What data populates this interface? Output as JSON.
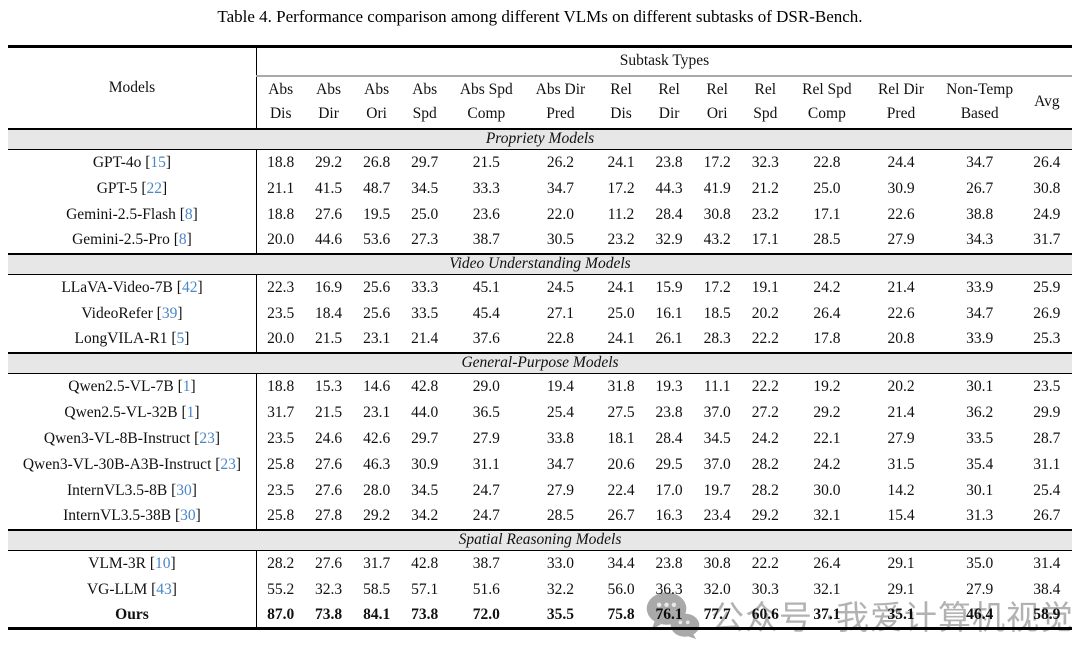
{
  "title": "Table 4. Performance comparison among different VLMs on different subtasks of DSR-Bench.",
  "colors": {
    "cite_blue": "#4A86C8",
    "section_band_gray": "#E7E7E7",
    "watermark_gray": "#B2B2B2"
  },
  "watermark": {
    "icon": "wechat-icon",
    "text": "公众号 ·我爱计算机视觉"
  },
  "table": {
    "models_header": "Models",
    "group_header": "Subtask Types",
    "columns": [
      {
        "l1": "Abs",
        "l2": "Dis"
      },
      {
        "l1": "Abs",
        "l2": "Dir"
      },
      {
        "l1": "Abs",
        "l2": "Ori"
      },
      {
        "l1": "Abs",
        "l2": "Spd"
      },
      {
        "l1": "Abs Spd",
        "l2": "Comp"
      },
      {
        "l1": "Abs Dir",
        "l2": "Pred"
      },
      {
        "l1": "Rel",
        "l2": "Dis"
      },
      {
        "l1": "Rel",
        "l2": "Dir"
      },
      {
        "l1": "Rel",
        "l2": "Ori"
      },
      {
        "l1": "Rel",
        "l2": "Spd"
      },
      {
        "l1": "Rel Spd",
        "l2": "Comp"
      },
      {
        "l1": "Rel Dir",
        "l2": "Pred"
      },
      {
        "l1": "Non-Temp",
        "l2": "Based"
      },
      {
        "l1": "Avg",
        "l2": ""
      }
    ],
    "sections": [
      {
        "label": "Propriety Models",
        "rows": [
          {
            "model": "GPT-4o",
            "cite": "15",
            "bold": false,
            "values": [
              "18.8",
              "29.2",
              "26.8",
              "29.7",
              "21.5",
              "26.2",
              "24.1",
              "23.8",
              "17.2",
              "32.3",
              "22.8",
              "24.4",
              "34.7",
              "26.4"
            ]
          },
          {
            "model": "GPT-5",
            "cite": "22",
            "bold": false,
            "values": [
              "21.1",
              "41.5",
              "48.7",
              "34.5",
              "33.3",
              "34.7",
              "17.2",
              "44.3",
              "41.9",
              "21.2",
              "25.0",
              "30.9",
              "26.7",
              "30.8"
            ]
          },
          {
            "model": "Gemini-2.5-Flash",
            "cite": "8",
            "bold": false,
            "values": [
              "18.8",
              "27.6",
              "19.5",
              "25.0",
              "23.6",
              "22.0",
              "11.2",
              "28.4",
              "30.8",
              "23.2",
              "17.1",
              "22.6",
              "38.8",
              "24.9"
            ]
          },
          {
            "model": "Gemini-2.5-Pro",
            "cite": "8",
            "bold": false,
            "values": [
              "20.0",
              "44.6",
              "53.6",
              "27.3",
              "38.7",
              "30.5",
              "23.2",
              "32.9",
              "43.2",
              "17.1",
              "28.5",
              "27.9",
              "34.3",
              "31.7"
            ]
          }
        ]
      },
      {
        "label": "Video Understanding Models",
        "rows": [
          {
            "model": "LLaVA-Video-7B",
            "cite": "42",
            "bold": false,
            "values": [
              "22.3",
              "16.9",
              "25.6",
              "33.3",
              "45.1",
              "24.5",
              "24.1",
              "15.9",
              "17.2",
              "19.1",
              "24.2",
              "21.4",
              "33.9",
              "25.9"
            ]
          },
          {
            "model": "VideoRefer",
            "cite": "39",
            "bold": false,
            "values": [
              "23.5",
              "18.4",
              "25.6",
              "33.5",
              "45.4",
              "27.1",
              "25.0",
              "16.1",
              "18.5",
              "20.2",
              "26.4",
              "22.6",
              "34.7",
              "26.9"
            ]
          },
          {
            "model": "LongVILA-R1",
            "cite": "5",
            "bold": false,
            "values": [
              "20.0",
              "21.5",
              "23.1",
              "21.4",
              "37.6",
              "22.8",
              "24.1",
              "26.1",
              "28.3",
              "22.2",
              "17.8",
              "20.8",
              "33.9",
              "25.3"
            ]
          }
        ]
      },
      {
        "label": "General-Purpose Models",
        "rows": [
          {
            "model": "Qwen2.5-VL-7B",
            "cite": "1",
            "bold": false,
            "values": [
              "18.8",
              "15.3",
              "14.6",
              "42.8",
              "29.0",
              "19.4",
              "31.8",
              "19.3",
              "11.1",
              "22.2",
              "19.2",
              "20.2",
              "30.1",
              "23.5"
            ]
          },
          {
            "model": "Qwen2.5-VL-32B",
            "cite": "1",
            "bold": false,
            "values": [
              "31.7",
              "21.5",
              "23.1",
              "44.0",
              "36.5",
              "25.4",
              "27.5",
              "23.8",
              "37.0",
              "27.2",
              "29.2",
              "21.4",
              "36.2",
              "29.9"
            ]
          },
          {
            "model": "Qwen3-VL-8B-Instruct",
            "cite": "23",
            "bold": false,
            "values": [
              "23.5",
              "24.6",
              "42.6",
              "29.7",
              "27.9",
              "33.8",
              "18.1",
              "28.4",
              "34.5",
              "24.2",
              "22.1",
              "27.9",
              "33.5",
              "28.7"
            ]
          },
          {
            "model": "Qwen3-VL-30B-A3B-Instruct",
            "cite": "23",
            "bold": false,
            "values": [
              "25.8",
              "27.6",
              "46.3",
              "30.9",
              "31.1",
              "34.7",
              "20.6",
              "29.5",
              "37.0",
              "28.2",
              "24.2",
              "31.5",
              "35.4",
              "31.1"
            ]
          },
          {
            "model": "InternVL3.5-8B",
            "cite": "30",
            "bold": false,
            "values": [
              "23.5",
              "27.6",
              "28.0",
              "34.5",
              "24.7",
              "27.9",
              "22.4",
              "17.0",
              "19.7",
              "28.2",
              "30.0",
              "14.2",
              "30.1",
              "25.4"
            ]
          },
          {
            "model": "InternVL3.5-38B",
            "cite": "30",
            "bold": false,
            "values": [
              "25.8",
              "27.8",
              "29.2",
              "34.2",
              "24.7",
              "28.5",
              "26.7",
              "16.3",
              "23.4",
              "29.2",
              "32.1",
              "15.4",
              "31.3",
              "26.7"
            ]
          }
        ]
      },
      {
        "label": "Spatial Reasoning Models",
        "rows": [
          {
            "model": "VLM-3R",
            "cite": "10",
            "bold": false,
            "values": [
              "28.2",
              "27.6",
              "31.7",
              "42.8",
              "38.7",
              "33.0",
              "34.4",
              "23.8",
              "30.8",
              "22.2",
              "26.4",
              "29.1",
              "35.0",
              "31.4"
            ]
          },
          {
            "model": "VG-LLM",
            "cite": "43",
            "bold": false,
            "values": [
              "55.2",
              "32.3",
              "58.5",
              "57.1",
              "51.6",
              "32.2",
              "56.0",
              "36.3",
              "32.0",
              "30.3",
              "32.1",
              "29.1",
              "27.9",
              "38.4"
            ]
          },
          {
            "model": "Ours",
            "cite": "",
            "bold": true,
            "values": [
              "87.0",
              "73.8",
              "84.1",
              "73.8",
              "72.0",
              "35.5",
              "75.8",
              "76.1",
              "77.7",
              "60.6",
              "37.1",
              "35.1",
              "46.4",
              "58.9"
            ]
          }
        ]
      }
    ]
  }
}
